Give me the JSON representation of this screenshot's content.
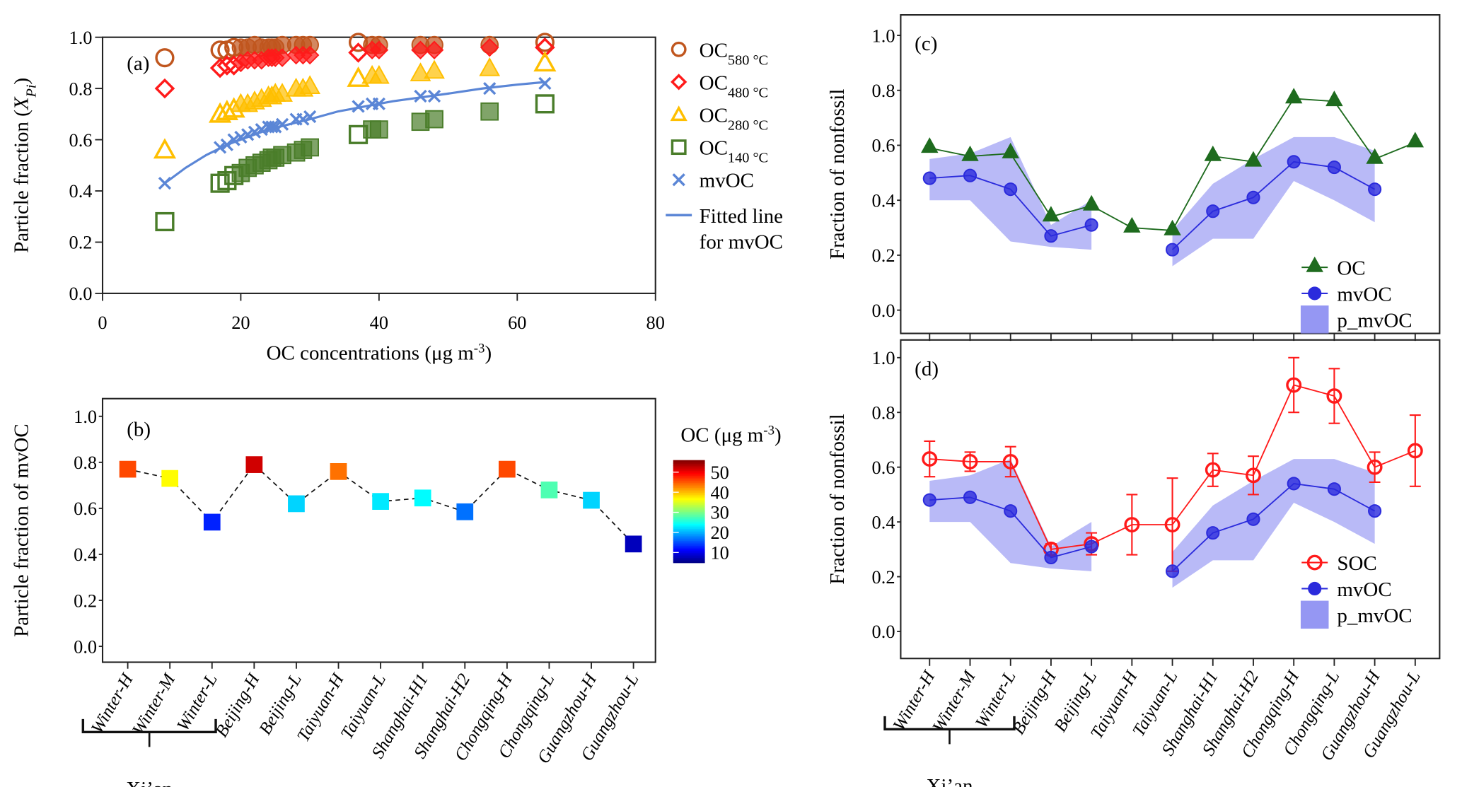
{
  "chart_data": [
    {
      "id": "a",
      "type": "scatter",
      "panel_label": "(a)",
      "title": "",
      "xlabel": "OC concentrations (μg m⁻³)",
      "xlabel_parts": {
        "base": "OC concentrations (μg m",
        "sup": "-3",
        "end": ")"
      },
      "ylabel": "Particle fraction (X_Pi)",
      "ylabel_parts": {
        "base": "Particle fraction (",
        "var": "X",
        "sub": "Pi",
        "end": ")"
      },
      "xlim": [
        0,
        80
      ],
      "ylim": [
        0,
        1.0
      ],
      "xticks": [
        "0",
        "20",
        "40",
        "60",
        "80"
      ],
      "yticks": [
        "0.0",
        "0.2",
        "0.4",
        "0.6",
        "0.8",
        "1.0"
      ],
      "x": [
        9,
        17,
        18,
        19,
        20,
        21,
        22,
        23,
        24,
        24.5,
        25,
        26,
        28,
        29,
        30,
        37,
        39,
        40,
        46,
        48,
        56,
        64
      ],
      "series": [
        {
          "name": "OC580°C",
          "label_base": "OC",
          "label_sub": "580 °C",
          "marker": "circle",
          "color": "#c0561e",
          "values": [
            0.92,
            0.95,
            0.95,
            0.96,
            0.96,
            0.96,
            0.97,
            0.96,
            0.96,
            0.96,
            0.96,
            0.97,
            0.97,
            0.97,
            0.97,
            0.98,
            0.97,
            0.97,
            0.97,
            0.97,
            0.97,
            0.98
          ]
        },
        {
          "name": "OC480°C",
          "label_base": "OC",
          "label_sub": "480 °C",
          "marker": "diamond",
          "color": "#ff1a1a",
          "values": [
            0.8,
            0.88,
            0.89,
            0.89,
            0.9,
            0.91,
            0.91,
            0.91,
            0.92,
            0.92,
            0.92,
            0.92,
            0.93,
            0.93,
            0.93,
            0.94,
            0.95,
            0.95,
            0.95,
            0.95,
            0.96,
            0.96
          ]
        },
        {
          "name": "OC280°C",
          "label_base": "OC",
          "label_sub": "280 °C",
          "marker": "triangle",
          "color": "#ffbf00",
          "values": [
            0.56,
            0.7,
            0.71,
            0.72,
            0.74,
            0.74,
            0.75,
            0.76,
            0.77,
            0.77,
            0.78,
            0.78,
            0.8,
            0.8,
            0.81,
            0.84,
            0.85,
            0.85,
            0.86,
            0.87,
            0.88,
            0.9
          ]
        },
        {
          "name": "OC140°C",
          "label_base": "OC",
          "label_sub": "140 °C",
          "marker": "square",
          "color": "#4a7d2a",
          "values": [
            0.28,
            0.43,
            0.44,
            0.46,
            0.47,
            0.49,
            0.5,
            0.51,
            0.52,
            0.53,
            0.53,
            0.54,
            0.55,
            0.56,
            0.57,
            0.62,
            0.64,
            0.64,
            0.67,
            0.68,
            0.71,
            0.74
          ]
        },
        {
          "name": "mvOC",
          "label_base": "mvOC",
          "label_sub": "",
          "marker": "x",
          "color": "#5b86d6",
          "values": [
            0.43,
            0.57,
            0.58,
            0.6,
            0.61,
            0.62,
            0.63,
            0.64,
            0.65,
            0.65,
            0.65,
            0.66,
            0.68,
            0.68,
            0.69,
            0.73,
            0.74,
            0.74,
            0.77,
            0.77,
            0.8,
            0.82
          ]
        }
      ],
      "fitted_line": {
        "name": "Fitted line for mvOC",
        "label_lines": [
          "Fitted line",
          "for mvOC"
        ],
        "color": "#5b86d6",
        "x": [
          9,
          12,
          15,
          18,
          21,
          24,
          27,
          30,
          34,
          38,
          42,
          46,
          50,
          55,
          60,
          64
        ],
        "y": [
          0.43,
          0.49,
          0.54,
          0.58,
          0.61,
          0.64,
          0.66,
          0.68,
          0.71,
          0.73,
          0.75,
          0.765,
          0.78,
          0.8,
          0.815,
          0.825
        ]
      },
      "legend_position": "outside-right",
      "grid": false
    },
    {
      "id": "b",
      "type": "scatter",
      "panel_label": "(b)",
      "ylabel": "Particle fraction of mvOC",
      "ylim": [
        0,
        1.0
      ],
      "yticks": [
        "0.0",
        "0.2",
        "0.4",
        "0.6",
        "0.8",
        "1.0"
      ],
      "categories": [
        "Winter-H",
        "Winter-M",
        "Winter-L",
        "Beijing-H",
        "Beijing-L",
        "Taiyuan-H",
        "Taiyuan-L",
        "Shanghai-H1",
        "Shanghai-H2",
        "Chongqing-H",
        "Chongqing-L",
        "Guangzhou-H",
        "Guangzhou-L"
      ],
      "values": [
        0.77,
        0.73,
        0.54,
        0.79,
        0.62,
        0.76,
        0.63,
        0.645,
        0.585,
        0.77,
        0.68,
        0.635,
        0.445
      ],
      "oc_concentration": [
        46,
        37,
        13,
        52,
        22,
        44,
        23,
        24,
        17,
        46,
        28,
        22,
        8
      ],
      "colorbar": {
        "title": "OC (μg m⁻³)",
        "title_parts": {
          "base": "OC (μg m",
          "sup": "-3",
          "end": ")"
        },
        "range": [
          5,
          56
        ],
        "ticks": [
          "10",
          "20",
          "30",
          "40",
          "50"
        ],
        "colormap": "jet"
      },
      "group_bracket": {
        "label": "Xi’an",
        "spans": [
          "Winter-H",
          "Winter-L"
        ]
      },
      "line_style": "dashed",
      "grid": false
    },
    {
      "id": "c",
      "type": "line",
      "panel_label": "(c)",
      "ylabel": "Fraction of nonfossil",
      "ylim": [
        0,
        1.0
      ],
      "yticks": [
        "0.0",
        "0.2",
        "0.4",
        "0.6",
        "0.8",
        "1.0"
      ],
      "categories": [
        "Winter-H",
        "Winter-M",
        "Winter-L",
        "Beijing-H",
        "Beijing-L",
        "Taiyuan-H",
        "Taiyuan-L",
        "Shanghai-H1",
        "Shanghai-H2",
        "Chongqing-H",
        "Chongqing-L",
        "Guangzhou-H",
        "Guangzhou-L"
      ],
      "series": [
        {
          "name": "OC",
          "marker": "triangle",
          "color": "#1e6b1e",
          "values": [
            0.59,
            0.56,
            0.57,
            0.34,
            0.38,
            0.3,
            0.29,
            0.56,
            0.54,
            0.77,
            0.76,
            0.55,
            0.61
          ]
        },
        {
          "name": "mvOC",
          "marker": "circle-filled",
          "color": "#2b2bdc",
          "values": [
            0.48,
            0.49,
            0.44,
            0.27,
            0.31,
            null,
            0.22,
            0.36,
            0.41,
            0.54,
            0.52,
            0.44,
            null
          ]
        }
      ],
      "band": {
        "name": "p_mvOC",
        "color": "#8a8cf2",
        "upper": [
          0.55,
          0.57,
          0.63,
          0.31,
          0.4,
          null,
          0.29,
          0.46,
          0.55,
          0.63,
          0.63,
          0.58,
          null
        ],
        "lower": [
          0.4,
          0.4,
          0.25,
          0.23,
          0.22,
          null,
          0.16,
          0.26,
          0.26,
          0.47,
          0.4,
          0.32,
          null
        ]
      },
      "legend_position": "bottom-right",
      "grid": false
    },
    {
      "id": "d",
      "type": "line",
      "panel_label": "(d)",
      "ylabel": "Fraction of nonfossil",
      "ylim": [
        0,
        1.0
      ],
      "yticks": [
        "0.0",
        "0.2",
        "0.4",
        "0.6",
        "0.8",
        "1.0"
      ],
      "categories": [
        "Winter-H",
        "Winter-M",
        "Winter-L",
        "Beijing-H",
        "Beijing-L",
        "Taiyuan-H",
        "Taiyuan-L",
        "Shanghai-H1",
        "Shanghai-H2",
        "Chongqing-H",
        "Chongqing-L",
        "Guangzhou-H",
        "Guangzhou-L"
      ],
      "series": [
        {
          "name": "SOC",
          "marker": "circle-open",
          "color": "#ff1a1a",
          "values": [
            0.63,
            0.62,
            0.62,
            0.3,
            0.32,
            0.39,
            0.39,
            0.59,
            0.57,
            0.9,
            0.86,
            0.6,
            0.66
          ],
          "error": [
            0.065,
            0.035,
            0.055,
            0.02,
            0.04,
            0.11,
            0.17,
            0.06,
            0.07,
            0.1,
            0.1,
            0.055,
            0.13
          ]
        },
        {
          "name": "mvOC",
          "marker": "circle-filled",
          "color": "#2b2bdc",
          "values": [
            0.48,
            0.49,
            0.44,
            0.27,
            0.31,
            null,
            0.22,
            0.36,
            0.41,
            0.54,
            0.52,
            0.44,
            null
          ]
        }
      ],
      "band": {
        "name": "p_mvOC",
        "color": "#8a8cf2",
        "upper": [
          0.55,
          0.57,
          0.63,
          0.31,
          0.4,
          null,
          0.29,
          0.46,
          0.55,
          0.63,
          0.63,
          0.58,
          null
        ],
        "lower": [
          0.4,
          0.4,
          0.25,
          0.23,
          0.22,
          null,
          0.16,
          0.26,
          0.26,
          0.47,
          0.4,
          0.32,
          null
        ]
      },
      "group_bracket": {
        "label": "Xi’an",
        "spans": [
          "Winter-H",
          "Winter-L"
        ]
      },
      "legend_position": "bottom-right",
      "grid": false
    }
  ]
}
